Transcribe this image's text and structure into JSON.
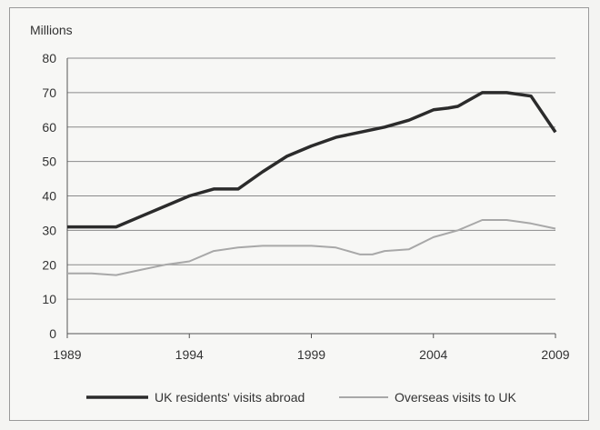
{
  "chart_data": {
    "type": "line",
    "title": "",
    "ylabel": "Millions",
    "xlabel": "",
    "xlim": [
      1989,
      2009
    ],
    "ylim": [
      0,
      80
    ],
    "x_ticks": [
      1989,
      1994,
      1999,
      2004,
      2009
    ],
    "y_ticks": [
      0,
      10,
      20,
      30,
      40,
      50,
      60,
      70,
      80
    ],
    "grid": "horizontal",
    "legend_position": "bottom",
    "series": [
      {
        "name": "UK residents' visits abroad",
        "color": "#2b2b2b",
        "x": [
          1989,
          1990,
          1991,
          1992,
          1993,
          1994,
          1995,
          1996,
          1997,
          1998,
          1999,
          2000,
          2001,
          2002,
          2003,
          2004,
          2004.6,
          2005,
          2006,
          2007,
          2008,
          2009
        ],
        "y": [
          31.0,
          31.0,
          31.0,
          34.0,
          37.0,
          40.0,
          42.0,
          42.0,
          47.0,
          51.5,
          54.5,
          57.0,
          58.5,
          60.0,
          62.0,
          65.0,
          65.5,
          66.0,
          70.0,
          70.0,
          69.0,
          58.5
        ]
      },
      {
        "name": "Overseas visits to UK",
        "color": "#a8a8a8",
        "x": [
          1989,
          1990,
          1991,
          1992,
          1993,
          1994,
          1995,
          1996,
          1997,
          1998,
          1999,
          2000,
          2001,
          2001.5,
          2002,
          2003,
          2004,
          2005,
          2006,
          2007,
          2008,
          2009
        ],
        "y": [
          17.5,
          17.5,
          17.0,
          18.5,
          20.0,
          21.0,
          24.0,
          25.0,
          25.5,
          25.5,
          25.5,
          25.0,
          23.0,
          23.0,
          24.0,
          24.5,
          28.0,
          30.0,
          33.0,
          33.0,
          32.0,
          30.5
        ]
      }
    ]
  }
}
